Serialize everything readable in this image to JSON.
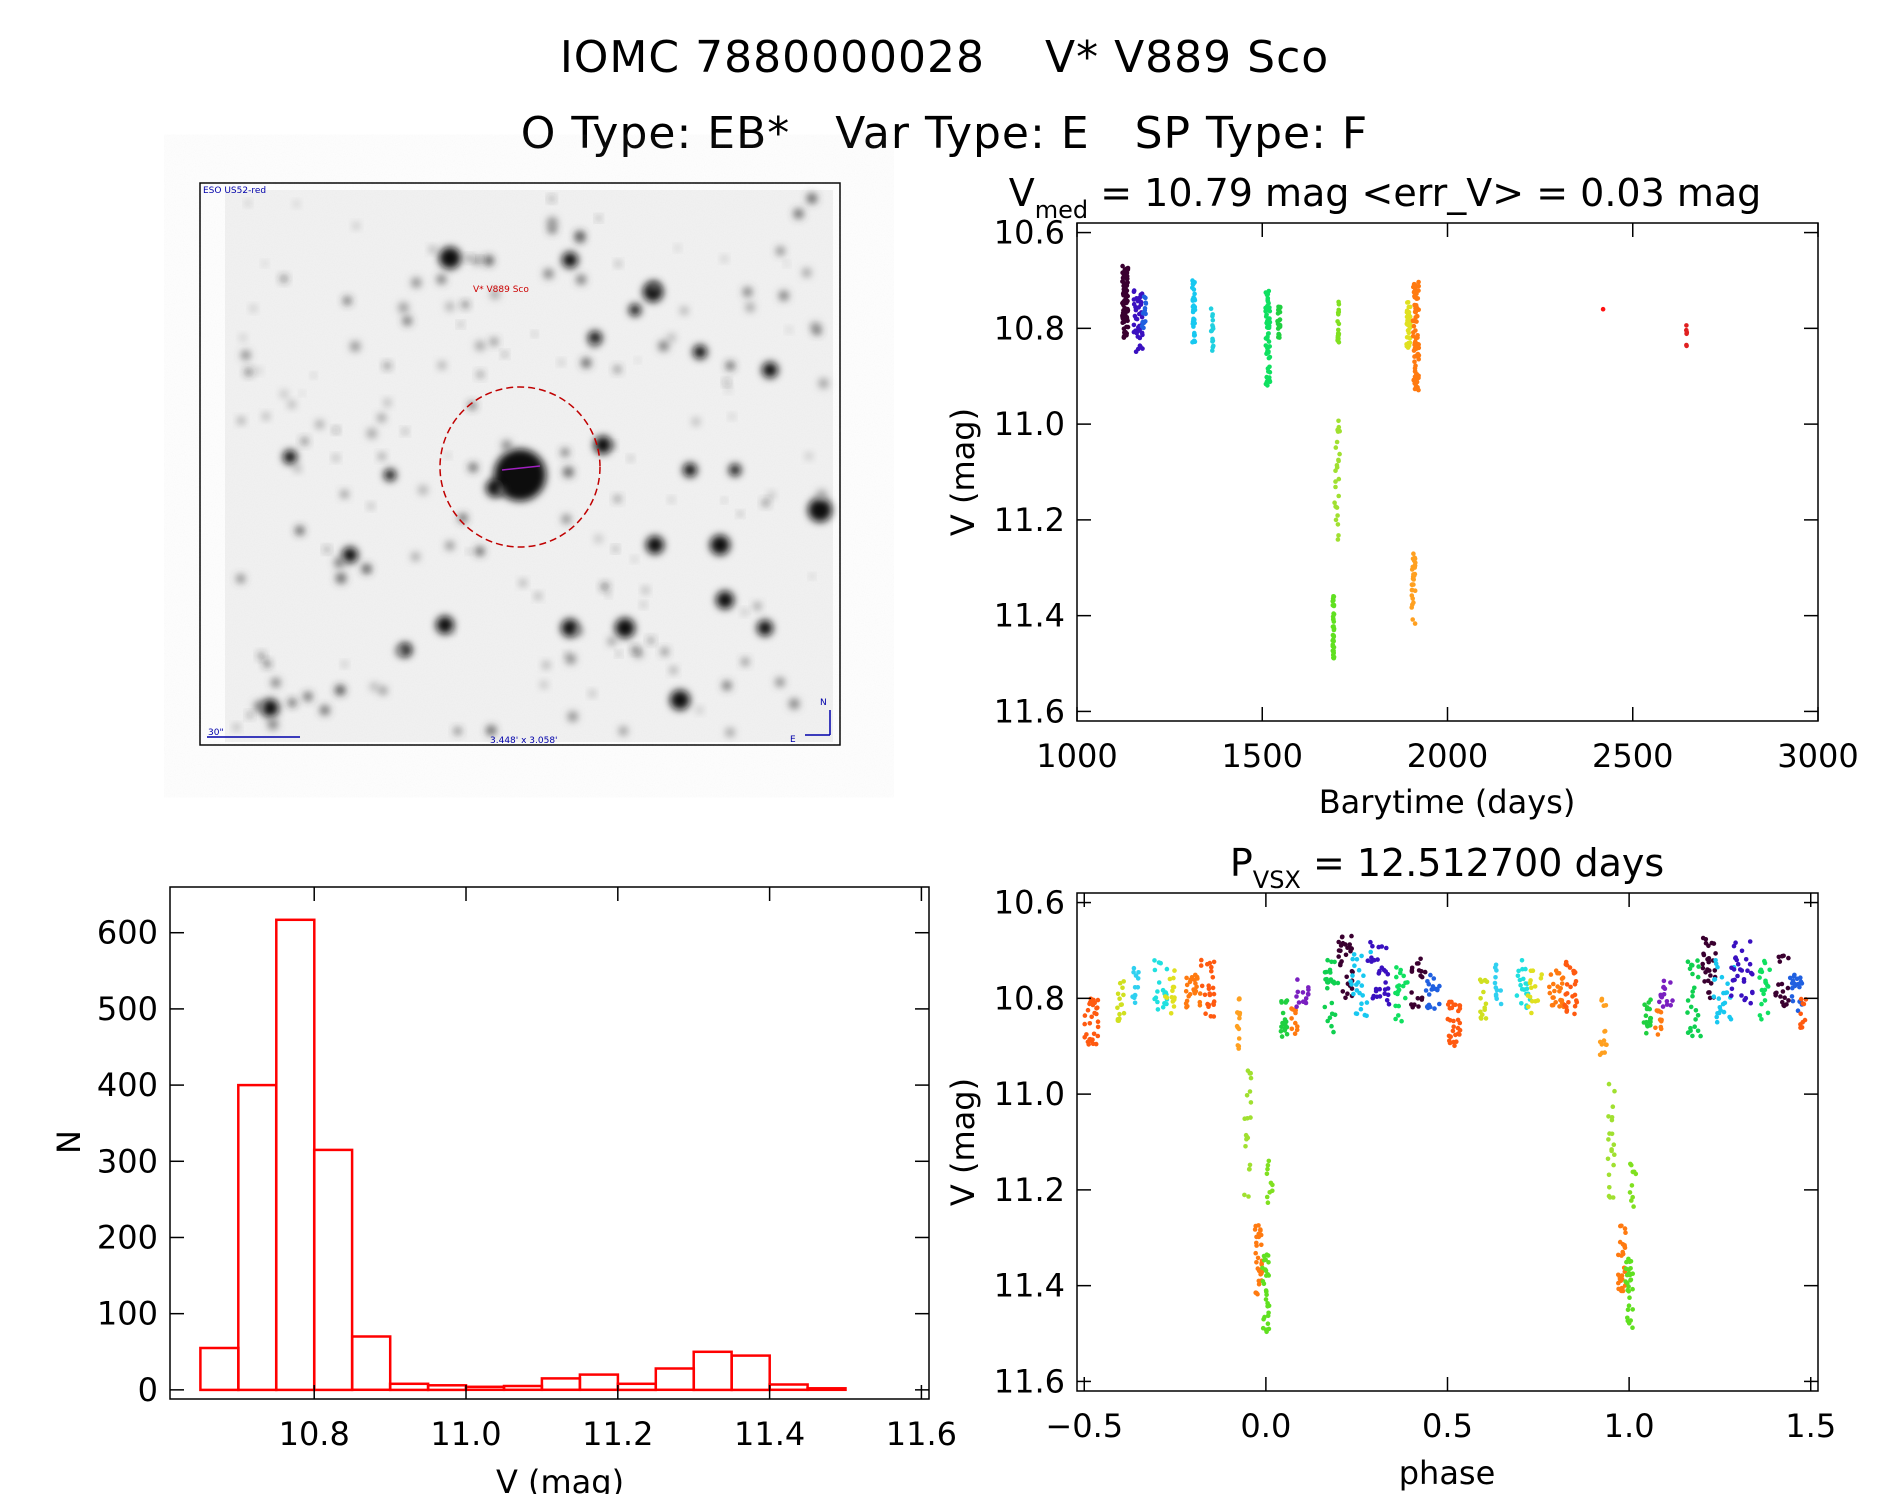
{
  "header": {
    "line1": "IOMC 7880000028    V* V889 Sco",
    "line2": "O Type: EB*   Var Type: E   SP Type: F"
  },
  "image_panel": {
    "survey_label": "ESO US52-red",
    "object_label": "V* V889 Sco",
    "scale_label": "30\"",
    "fov_label": "3.448' x 3.058'",
    "north_label": "N",
    "east_label": "E"
  },
  "colors": {
    "histogram": "#ff0000",
    "circle": "#c00000",
    "annotation_blue": "#0000aa",
    "annotation_red": "#cc0000"
  },
  "chart_data": [
    {
      "id": "lightcurve",
      "type": "scatter",
      "title_main": "V",
      "title_sub": "med",
      "title_rest": " = 10.79 mag <err_V> = 0.03 mag",
      "xlabel": "Barytime (days)",
      "ylabel": "V (mag)",
      "xlim": [
        1000,
        3000
      ],
      "ylim": [
        11.62,
        10.58
      ],
      "xticks": [
        1000,
        1500,
        2000,
        2500,
        3000
      ],
      "xtick_labels": [
        "1000",
        "1500",
        "2000",
        "2500",
        "3000"
      ],
      "yticks": [
        10.6,
        10.8,
        11.0,
        11.2,
        11.4,
        11.6
      ],
      "ytick_labels": [
        "10.6",
        "10.8",
        "11.0",
        "11.2",
        "11.4",
        "11.6"
      ],
      "clusters": [
        {
          "x": 1130,
          "dx": 8,
          "ymin": 10.67,
          "ymax": 10.82,
          "n": 90,
          "color": "#3a0030"
        },
        {
          "x": 1165,
          "dx": 12,
          "ymin": 10.72,
          "ymax": 10.85,
          "n": 40,
          "color": "#3a10c0"
        },
        {
          "x": 1180,
          "dx": 6,
          "ymin": 10.73,
          "ymax": 10.8,
          "n": 15,
          "color": "#2060e0"
        },
        {
          "x": 1315,
          "dx": 4,
          "ymin": 10.7,
          "ymax": 10.83,
          "n": 35,
          "color": "#18c8f0"
        },
        {
          "x": 1365,
          "dx": 3,
          "ymin": 10.74,
          "ymax": 10.85,
          "n": 15,
          "color": "#20d0e0"
        },
        {
          "x": 1515,
          "dx": 6,
          "ymin": 10.72,
          "ymax": 10.92,
          "n": 60,
          "color": "#10e060"
        },
        {
          "x": 1545,
          "dx": 4,
          "ymin": 10.75,
          "ymax": 10.82,
          "n": 20,
          "color": "#20d040"
        },
        {
          "x": 1705,
          "dx": 2,
          "ymin": 10.74,
          "ymax": 10.83,
          "n": 20,
          "color": "#80e020"
        },
        {
          "x": 1702,
          "dx": 7,
          "ymin": 10.98,
          "ymax": 11.25,
          "n": 25,
          "color": "#a0e030"
        },
        {
          "x": 1692,
          "dx": 2,
          "ymin": 11.35,
          "ymax": 11.5,
          "n": 35,
          "color": "#60e020"
        },
        {
          "x": 1895,
          "dx": 6,
          "ymin": 10.73,
          "ymax": 10.85,
          "n": 40,
          "color": "#e0e020"
        },
        {
          "x": 1915,
          "dx": 8,
          "ymin": 10.7,
          "ymax": 10.93,
          "n": 90,
          "color": "#ff7a10"
        },
        {
          "x": 1908,
          "dx": 5,
          "ymin": 11.27,
          "ymax": 11.42,
          "n": 30,
          "color": "#ffa020"
        },
        {
          "x": 2420,
          "dx": 0,
          "ymin": 10.76,
          "ymax": 10.76,
          "n": 1,
          "color": "#ff1010"
        },
        {
          "x": 2645,
          "dx": 1,
          "ymin": 10.79,
          "ymax": 10.84,
          "n": 6,
          "color": "#e02020"
        }
      ]
    },
    {
      "id": "histogram",
      "type": "bar",
      "xlabel": "V (mag)",
      "ylabel": "N",
      "xlim": [
        10.61,
        11.61
      ],
      "ylim": [
        -12,
        660
      ],
      "xticks": [
        10.8,
        11.0,
        11.2,
        11.4,
        11.6
      ],
      "xtick_labels": [
        "10.8",
        "11.0",
        "11.2",
        "11.4",
        "11.6"
      ],
      "yticks": [
        0,
        100,
        200,
        300,
        400,
        500,
        600
      ],
      "ytick_labels": [
        "0",
        "100",
        "200",
        "300",
        "400",
        "500",
        "600"
      ],
      "bin_start": 10.65,
      "bin_width": 0.05,
      "values": [
        55,
        400,
        617,
        315,
        70,
        8,
        6,
        4,
        5,
        15,
        20,
        8,
        28,
        50,
        45,
        7,
        2,
        0
      ]
    },
    {
      "id": "phased",
      "type": "scatter",
      "title_main": "P",
      "title_sub": "VSX",
      "title_rest": " = 12.512700 days",
      "xlabel": "phase",
      "ylabel": "V (mag)",
      "xlim": [
        -0.52,
        1.52
      ],
      "ylim": [
        11.62,
        10.58
      ],
      "xticks": [
        -0.5,
        0.0,
        0.5,
        1.0,
        1.5
      ],
      "xtick_labels": [
        "−0.5",
        "0.0",
        "0.5",
        "1.0",
        "1.5"
      ],
      "yticks": [
        10.6,
        10.8,
        11.0,
        11.2,
        11.4,
        11.6
      ],
      "ytick_labels": [
        "10.6",
        "10.8",
        "11.0",
        "11.2",
        "11.4",
        "11.6"
      ],
      "clusters": [
        {
          "x": -0.48,
          "dx": 0.02,
          "ymin": 10.8,
          "ymax": 10.9,
          "n": 30,
          "color": "#ff5a10"
        },
        {
          "x": -0.4,
          "dx": 0.01,
          "ymin": 10.76,
          "ymax": 10.85,
          "n": 15,
          "color": "#d0e020"
        },
        {
          "x": -0.36,
          "dx": 0.01,
          "ymin": 10.73,
          "ymax": 10.82,
          "n": 12,
          "color": "#30d0f0"
        },
        {
          "x": -0.29,
          "dx": 0.02,
          "ymin": 10.72,
          "ymax": 10.83,
          "n": 20,
          "color": "#20e0e0"
        },
        {
          "x": -0.26,
          "dx": 0.02,
          "ymin": 10.74,
          "ymax": 10.84,
          "n": 15,
          "color": "#e0e020"
        },
        {
          "x": -0.2,
          "dx": 0.02,
          "ymin": 10.74,
          "ymax": 10.82,
          "n": 25,
          "color": "#ff7a10"
        },
        {
          "x": -0.16,
          "dx": 0.02,
          "ymin": 10.72,
          "ymax": 10.84,
          "n": 25,
          "color": "#ff5a10"
        },
        {
          "x": -0.07,
          "dx": 0.01,
          "ymin": 10.8,
          "ymax": 10.92,
          "n": 15,
          "color": "#ffa020"
        },
        {
          "x": -0.05,
          "dx": 0.01,
          "ymin": 10.95,
          "ymax": 11.22,
          "n": 20,
          "color": "#a0e030"
        },
        {
          "x": -0.02,
          "dx": 0.01,
          "ymin": 11.27,
          "ymax": 11.42,
          "n": 30,
          "color": "#ff7a10"
        },
        {
          "x": 0.0,
          "dx": 0.01,
          "ymin": 11.33,
          "ymax": 11.5,
          "n": 30,
          "color": "#60e020"
        },
        {
          "x": 0.01,
          "dx": 0.01,
          "ymin": 11.13,
          "ymax": 11.25,
          "n": 10,
          "color": "#80e020"
        },
        {
          "x": 0.05,
          "dx": 0.01,
          "ymin": 10.8,
          "ymax": 10.88,
          "n": 20,
          "color": "#20d040"
        },
        {
          "x": 0.08,
          "dx": 0.01,
          "ymin": 10.82,
          "ymax": 10.88,
          "n": 12,
          "color": "#ff7a10"
        },
        {
          "x": 0.1,
          "dx": 0.02,
          "ymin": 10.76,
          "ymax": 10.82,
          "n": 15,
          "color": "#7a20c0"
        },
        {
          "x": 0.18,
          "dx": 0.02,
          "ymin": 10.72,
          "ymax": 10.88,
          "n": 25,
          "color": "#10d050"
        },
        {
          "x": 0.22,
          "dx": 0.02,
          "ymin": 10.67,
          "ymax": 10.8,
          "n": 30,
          "color": "#3a0030"
        },
        {
          "x": 0.26,
          "dx": 0.03,
          "ymin": 10.7,
          "ymax": 10.85,
          "n": 25,
          "color": "#18c8f0"
        },
        {
          "x": 0.31,
          "dx": 0.03,
          "ymin": 10.68,
          "ymax": 10.82,
          "n": 30,
          "color": "#3a10c0"
        },
        {
          "x": 0.37,
          "dx": 0.02,
          "ymin": 10.72,
          "ymax": 10.85,
          "n": 20,
          "color": "#10e060"
        },
        {
          "x": 0.42,
          "dx": 0.02,
          "ymin": 10.71,
          "ymax": 10.82,
          "n": 20,
          "color": "#3a0030"
        },
        {
          "x": 0.46,
          "dx": 0.02,
          "ymin": 10.74,
          "ymax": 10.83,
          "n": 20,
          "color": "#2060e0"
        },
        {
          "x": 0.52,
          "dx": 0.02,
          "ymin": 10.8,
          "ymax": 10.9,
          "n": 30,
          "color": "#ff5a10"
        },
        {
          "x": 0.6,
          "dx": 0.01,
          "ymin": 10.76,
          "ymax": 10.85,
          "n": 15,
          "color": "#d0e020"
        },
        {
          "x": 0.64,
          "dx": 0.01,
          "ymin": 10.73,
          "ymax": 10.82,
          "n": 12,
          "color": "#30d0f0"
        },
        {
          "x": 0.71,
          "dx": 0.02,
          "ymin": 10.72,
          "ymax": 10.83,
          "n": 20,
          "color": "#20e0e0"
        },
        {
          "x": 0.74,
          "dx": 0.02,
          "ymin": 10.74,
          "ymax": 10.84,
          "n": 15,
          "color": "#e0e020"
        },
        {
          "x": 0.8,
          "dx": 0.02,
          "ymin": 10.74,
          "ymax": 10.82,
          "n": 25,
          "color": "#ff7a10"
        },
        {
          "x": 0.84,
          "dx": 0.02,
          "ymin": 10.72,
          "ymax": 10.84,
          "n": 25,
          "color": "#ff5a10"
        },
        {
          "x": 0.93,
          "dx": 0.01,
          "ymin": 10.8,
          "ymax": 10.92,
          "n": 15,
          "color": "#ffa020"
        },
        {
          "x": 0.95,
          "dx": 0.01,
          "ymin": 10.95,
          "ymax": 11.22,
          "n": 20,
          "color": "#a0e030"
        },
        {
          "x": 0.98,
          "dx": 0.01,
          "ymin": 11.27,
          "ymax": 11.42,
          "n": 30,
          "color": "#ff7a10"
        },
        {
          "x": 1.0,
          "dx": 0.01,
          "ymin": 11.33,
          "ymax": 11.5,
          "n": 30,
          "color": "#60e020"
        },
        {
          "x": 1.01,
          "dx": 0.01,
          "ymin": 11.13,
          "ymax": 11.25,
          "n": 10,
          "color": "#80e020"
        },
        {
          "x": 1.05,
          "dx": 0.01,
          "ymin": 10.8,
          "ymax": 10.88,
          "n": 20,
          "color": "#20d040"
        },
        {
          "x": 1.08,
          "dx": 0.01,
          "ymin": 10.82,
          "ymax": 10.88,
          "n": 12,
          "color": "#ff7a10"
        },
        {
          "x": 1.1,
          "dx": 0.02,
          "ymin": 10.76,
          "ymax": 10.82,
          "n": 15,
          "color": "#7a20c0"
        },
        {
          "x": 1.18,
          "dx": 0.02,
          "ymin": 10.72,
          "ymax": 10.88,
          "n": 25,
          "color": "#10d050"
        },
        {
          "x": 1.22,
          "dx": 0.02,
          "ymin": 10.67,
          "ymax": 10.8,
          "n": 30,
          "color": "#3a0030"
        },
        {
          "x": 1.26,
          "dx": 0.03,
          "ymin": 10.7,
          "ymax": 10.85,
          "n": 25,
          "color": "#18c8f0"
        },
        {
          "x": 1.31,
          "dx": 0.03,
          "ymin": 10.68,
          "ymax": 10.82,
          "n": 30,
          "color": "#3a10c0"
        },
        {
          "x": 1.37,
          "dx": 0.02,
          "ymin": 10.72,
          "ymax": 10.85,
          "n": 20,
          "color": "#10e060"
        },
        {
          "x": 1.42,
          "dx": 0.02,
          "ymin": 10.71,
          "ymax": 10.82,
          "n": 20,
          "color": "#3a0030"
        },
        {
          "x": 1.46,
          "dx": 0.02,
          "ymin": 10.74,
          "ymax": 10.83,
          "n": 20,
          "color": "#2060e0"
        },
        {
          "x": 1.48,
          "dx": 0.01,
          "ymin": 10.8,
          "ymax": 10.88,
          "n": 10,
          "color": "#ff5a10"
        }
      ]
    }
  ]
}
